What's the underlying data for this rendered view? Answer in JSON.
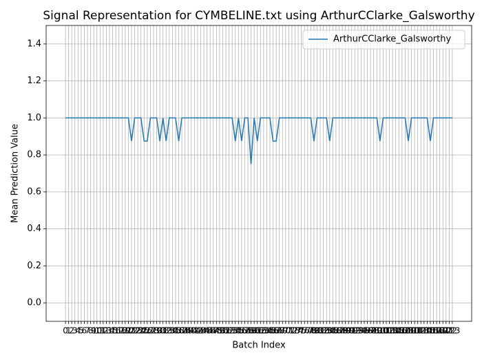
{
  "chart_data": {
    "type": "line",
    "title": "Signal Representation for CYMBELINE.txt using ArthurCClarke_Galsworthy",
    "x_label": "Batch Index",
    "y_label": "Mean Prediction Value",
    "x": [
      0,
      1,
      2,
      3,
      4,
      5,
      6,
      7,
      8,
      9,
      10,
      11,
      12,
      13,
      14,
      15,
      16,
      17,
      18,
      19,
      20,
      21,
      22,
      23,
      24,
      25,
      26,
      27,
      28,
      29,
      30,
      31,
      32,
      33,
      34,
      35,
      36,
      37,
      38,
      39,
      40,
      41,
      42,
      43,
      44,
      45,
      46,
      47,
      48,
      49,
      50,
      51,
      52,
      53,
      54,
      55,
      56,
      57,
      58,
      59,
      60,
      61,
      62,
      63,
      64,
      65,
      66,
      67,
      68,
      69,
      70,
      71,
      72,
      73,
      74,
      75,
      76,
      77,
      78,
      79,
      80,
      81,
      82,
      83,
      84,
      85,
      86,
      87,
      88,
      89,
      90,
      91,
      92,
      93,
      94,
      95,
      96,
      97,
      98,
      99,
      100,
      101,
      102,
      103,
      104,
      105,
      106,
      107,
      108,
      109,
      110,
      111,
      112,
      113,
      114,
      115,
      116,
      117,
      118,
      119,
      120,
      121,
      122,
      123
    ],
    "series": [
      {
        "name": "ArthurCClarke_Galsworthy",
        "color": "#1f77b4",
        "values": [
          1,
          1,
          1,
          1,
          1,
          1,
          1,
          1,
          1,
          1,
          1,
          1,
          1,
          1,
          1,
          1,
          1,
          1,
          1,
          1,
          1,
          0.875,
          1,
          1,
          1,
          0.875,
          0.875,
          1,
          1,
          1,
          0.875,
          1,
          0.875,
          1,
          1,
          1,
          0.875,
          1,
          1,
          1,
          1,
          1,
          1,
          1,
          1,
          1,
          1,
          1,
          1,
          1,
          1,
          1,
          1,
          1,
          0.875,
          1,
          0.875,
          1,
          1,
          0.75,
          1,
          0.875,
          1,
          1,
          1,
          1,
          0.875,
          0.875,
          1,
          1,
          1,
          1,
          1,
          1,
          1,
          1,
          1,
          1,
          1,
          0.875,
          1,
          1,
          1,
          1,
          0.875,
          1,
          1,
          1,
          1,
          1,
          1,
          1,
          1,
          1,
          1,
          1,
          1,
          1,
          1,
          1,
          0.875,
          1,
          1,
          1,
          1,
          1,
          1,
          1,
          1,
          0.875,
          1,
          1,
          1,
          1,
          1,
          1,
          0.875,
          1,
          1,
          1,
          1,
          1,
          1,
          1
        ]
      }
    ],
    "xlim": [
      -6.15,
      129.15
    ],
    "ylim": [
      -0.1,
      1.5
    ],
    "yticks": [
      {
        "value": 0,
        "label": "0.0"
      },
      0.2,
      0.4,
      0.6,
      0.8,
      {
        "value": 1,
        "label": "1.0"
      },
      1.2,
      1.4
    ],
    "grid": true,
    "legend": "upper right"
  }
}
